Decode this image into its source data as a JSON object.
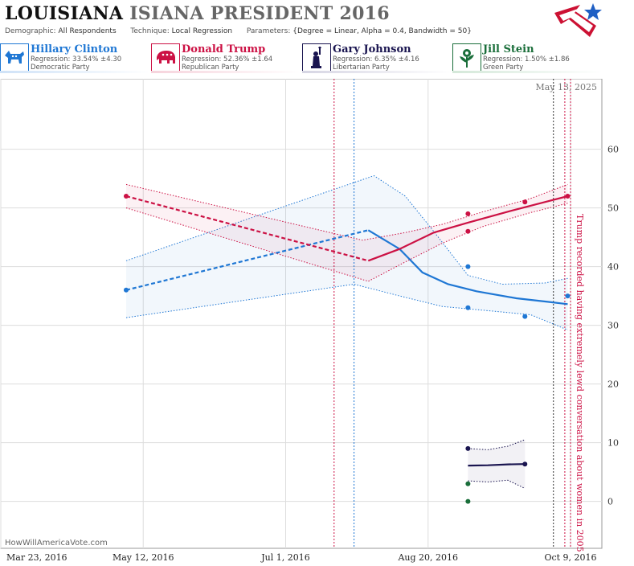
{
  "header": {
    "title_state": "LOUISIANA",
    "title_rest": "ISIANA PRESIDENT 2016",
    "demographic_label": "Demographic:",
    "demographic_value": "All Respondents",
    "technique_label": "Technique:",
    "technique_value": "Local Regression",
    "parameters_label": "Parameters:",
    "parameters_value": "{Degree = Linear, Alpha = 0.4, Bandwidth = 50}"
  },
  "legend": [
    {
      "name": "Hillary Clinton",
      "regression": "Regression: 33.54% ±4.30",
      "party": "Democratic Party",
      "color": "#1f77d4",
      "icon": "donkey-icon"
    },
    {
      "name": "Donald Trump",
      "regression": "Regression: 52.36% ±1.64",
      "party": "Republican Party",
      "color": "#cc1144",
      "icon": "elephant-icon"
    },
    {
      "name": "Gary Johnson",
      "regression": "Regression: 6.35% ±4.16",
      "party": "Libertarian Party",
      "color": "#1a1550",
      "icon": "liberty-statue-icon"
    },
    {
      "name": "Jill Stein",
      "regression": "Regression: 1.50% ±1.86",
      "party": "Green Party",
      "color": "#1a6e3a",
      "icon": "flower-icon"
    }
  ],
  "chart_data": {
    "type": "line",
    "title": "LOUISIANA ISIANA PRESIDENT 2016",
    "x_ticks": [
      "Mar 23, 2016",
      "May 12, 2016",
      "Jul 1, 2016",
      "Aug 20, 2016",
      "Oct 9, 2016"
    ],
    "xlim": [
      "2016-03-23",
      "2016-10-20"
    ],
    "ylim": [
      -8,
      72
    ],
    "y_ticks": [
      0,
      10,
      20,
      30,
      40,
      50,
      60
    ],
    "grid": true,
    "date_label": "May 13, 2025",
    "annotation": "Trump recorded having extremely lewd conversation about women in 2005",
    "watermark": "HowWillAmericaVote.com",
    "event_dates": [
      {
        "date": "2016-07-18",
        "color": "#cc1144"
      },
      {
        "date": "2016-07-25",
        "color": "#1f77d4"
      },
      {
        "date": "2016-10-03",
        "color": "#333333"
      },
      {
        "date": "2016-10-07",
        "color": "#cc1144"
      },
      {
        "date": "2016-10-09",
        "color": "#cc1144"
      }
    ],
    "series": [
      {
        "name": "Hillary Clinton",
        "color": "#1f77d4",
        "points": [
          [
            "2016-05-06",
            36
          ],
          [
            "2016-09-03",
            33
          ],
          [
            "2016-09-03",
            40
          ],
          [
            "2016-09-23",
            31.5
          ],
          [
            "2016-10-08",
            35
          ]
        ],
        "dashed": [
          [
            "2016-05-06",
            36
          ],
          [
            "2016-07-30",
            46.2
          ]
        ],
        "solid": [
          [
            "2016-07-30",
            46.2
          ],
          [
            "2016-08-10",
            43
          ],
          [
            "2016-08-18",
            39
          ],
          [
            "2016-08-27",
            37
          ],
          [
            "2016-09-06",
            35.8
          ],
          [
            "2016-09-20",
            34.6
          ],
          [
            "2016-10-01",
            34
          ],
          [
            "2016-10-08",
            33.6
          ]
        ],
        "upper": [
          [
            "2016-05-06",
            41
          ],
          [
            "2016-08-01",
            55.5
          ],
          [
            "2016-08-12",
            52
          ],
          [
            "2016-08-22",
            46
          ],
          [
            "2016-09-03",
            38.5
          ],
          [
            "2016-09-15",
            37
          ],
          [
            "2016-09-30",
            37.2
          ],
          [
            "2016-10-08",
            38
          ]
        ],
        "lower": [
          [
            "2016-05-06",
            31.3
          ],
          [
            "2016-07-25",
            37
          ],
          [
            "2016-08-10",
            35
          ],
          [
            "2016-08-25",
            33.2
          ],
          [
            "2016-09-10",
            32.5
          ],
          [
            "2016-09-25",
            31.8
          ],
          [
            "2016-10-08",
            29.2
          ]
        ]
      },
      {
        "name": "Donald Trump",
        "color": "#cc1144",
        "points": [
          [
            "2016-05-06",
            52
          ],
          [
            "2016-09-03",
            49
          ],
          [
            "2016-09-03",
            46
          ],
          [
            "2016-09-23",
            51
          ],
          [
            "2016-10-08",
            52
          ]
        ],
        "dashed": [
          [
            "2016-05-06",
            52
          ],
          [
            "2016-07-30",
            41
          ]
        ],
        "solid": [
          [
            "2016-07-30",
            41
          ],
          [
            "2016-08-10",
            43
          ],
          [
            "2016-08-22",
            45.8
          ],
          [
            "2016-09-03",
            47.5
          ],
          [
            "2016-09-18",
            49.5
          ],
          [
            "2016-09-30",
            51
          ],
          [
            "2016-10-08",
            52
          ]
        ],
        "upper": [
          [
            "2016-05-06",
            54
          ],
          [
            "2016-07-28",
            44.5
          ],
          [
            "2016-08-12",
            45.8
          ],
          [
            "2016-08-25",
            47.2
          ],
          [
            "2016-09-08",
            49.3
          ],
          [
            "2016-09-25",
            51.6
          ],
          [
            "2016-10-08",
            54
          ]
        ],
        "lower": [
          [
            "2016-05-06",
            50
          ],
          [
            "2016-07-30",
            37.5
          ],
          [
            "2016-08-12",
            40.8
          ],
          [
            "2016-08-25",
            44
          ],
          [
            "2016-09-08",
            46.8
          ],
          [
            "2016-09-25",
            49.2
          ],
          [
            "2016-10-08",
            50.8
          ]
        ]
      },
      {
        "name": "Gary Johnson",
        "color": "#1a1550",
        "points": [
          [
            "2016-09-03",
            9
          ],
          [
            "2016-09-23",
            6.35
          ]
        ],
        "solid": [
          [
            "2016-09-03",
            6.1
          ],
          [
            "2016-09-10",
            6.15
          ],
          [
            "2016-09-17",
            6.3
          ],
          [
            "2016-09-23",
            6.35
          ]
        ],
        "upper": [
          [
            "2016-09-03",
            9
          ],
          [
            "2016-09-10",
            8.8
          ],
          [
            "2016-09-17",
            9.4
          ],
          [
            "2016-09-23",
            10.5
          ]
        ],
        "lower": [
          [
            "2016-09-03",
            3.5
          ],
          [
            "2016-09-10",
            3.3
          ],
          [
            "2016-09-17",
            3.6
          ],
          [
            "2016-09-23",
            2.2
          ]
        ]
      },
      {
        "name": "Jill Stein",
        "color": "#1a6e3a",
        "points": [
          [
            "2016-09-03",
            3
          ],
          [
            "2016-09-03",
            0
          ]
        ]
      }
    ]
  }
}
